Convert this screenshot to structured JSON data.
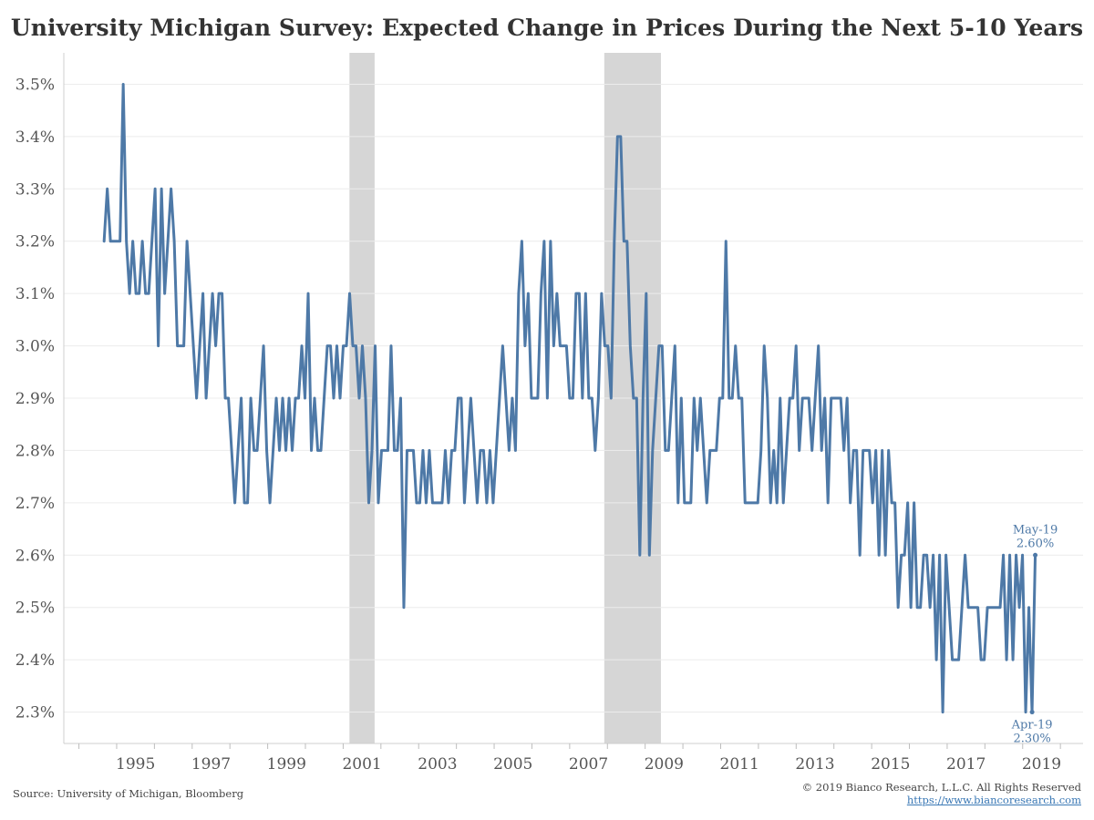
{
  "chart_data": {
    "type": "line",
    "title": "University Michigan Survey: Expected Change in Prices During the Next 5-10 Years",
    "xlabel": "",
    "ylabel": "",
    "x_start": "1994-09",
    "x_end": "2019-05",
    "x_ticks": [
      "1995",
      "1997",
      "1999",
      "2001",
      "2003",
      "2005",
      "2007",
      "2009",
      "2011",
      "2013",
      "2015",
      "2017",
      "2019"
    ],
    "y_ticks": [
      "2.3%",
      "2.4%",
      "2.5%",
      "2.6%",
      "2.7%",
      "2.8%",
      "2.9%",
      "3.0%",
      "3.1%",
      "3.2%",
      "3.3%",
      "3.4%",
      "3.5%"
    ],
    "ylim": [
      2.24,
      3.56
    ],
    "grid": "horizontal",
    "line_color": "#4e79a7",
    "shade_color": "#d6d6d6",
    "recessions": [
      {
        "start": "2001-03",
        "end": "2001-11"
      },
      {
        "start": "2007-12",
        "end": "2009-06"
      }
    ],
    "series": [
      {
        "values": [
          3.2,
          3.3,
          3.2,
          3.2,
          3.2,
          3.2,
          3.5,
          3.2,
          3.1,
          3.2,
          3.1,
          3.1,
          3.2,
          3.1,
          3.1,
          3.2,
          3.3,
          3.0,
          3.3,
          3.1,
          3.2,
          3.3,
          3.2,
          3.0,
          3.0,
          3.0,
          3.2,
          3.1,
          3.0,
          2.9,
          3.0,
          3.1,
          2.9,
          3.0,
          3.1,
          3.0,
          3.1,
          3.1,
          2.9,
          2.9,
          2.8,
          2.7,
          2.8,
          2.9,
          2.7,
          2.7,
          2.9,
          2.8,
          2.8,
          2.9,
          3.0,
          2.8,
          2.7,
          2.8,
          2.9,
          2.8,
          2.9,
          2.8,
          2.9,
          2.8,
          2.9,
          2.9,
          3.0,
          2.9,
          3.1,
          2.8,
          2.9,
          2.8,
          2.8,
          2.9,
          3.0,
          3.0,
          2.9,
          3.0,
          2.9,
          3.0,
          3.0,
          3.1,
          3.0,
          3.0,
          2.9,
          3.0,
          2.9,
          2.7,
          2.8,
          3.0,
          2.7,
          2.8,
          2.8,
          2.8,
          3.0,
          2.8,
          2.8,
          2.9,
          2.5,
          2.8,
          2.8,
          2.8,
          2.7,
          2.7,
          2.8,
          2.7,
          2.8,
          2.7,
          2.7,
          2.7,
          2.7,
          2.8,
          2.7,
          2.8,
          2.8,
          2.9,
          2.9,
          2.7,
          2.8,
          2.9,
          2.8,
          2.7,
          2.8,
          2.8,
          2.7,
          2.8,
          2.7,
          2.8,
          2.9,
          3.0,
          2.9,
          2.8,
          2.9,
          2.8,
          3.1,
          3.2,
          3.0,
          3.1,
          2.9,
          2.9,
          2.9,
          3.1,
          3.2,
          2.9,
          3.2,
          3.0,
          3.1,
          3.0,
          3.0,
          3.0,
          2.9,
          2.9,
          3.1,
          3.1,
          2.9,
          3.1,
          2.9,
          2.9,
          2.8,
          2.9,
          3.1,
          3.0,
          3.0,
          2.9,
          3.2,
          3.4,
          3.4,
          3.2,
          3.2,
          3.0,
          2.9,
          2.9,
          2.6,
          2.9,
          3.1,
          2.6,
          2.8,
          2.9,
          3.0,
          3.0,
          2.8,
          2.8,
          2.9,
          3.0,
          2.7,
          2.9,
          2.7,
          2.7,
          2.7,
          2.9,
          2.8,
          2.9,
          2.8,
          2.7,
          2.8,
          2.8,
          2.8,
          2.9,
          2.9,
          3.2,
          2.9,
          2.9,
          3.0,
          2.9,
          2.9,
          2.7,
          2.7,
          2.7,
          2.7,
          2.7,
          2.8,
          3.0,
          2.9,
          2.7,
          2.8,
          2.7,
          2.9,
          2.7,
          2.8,
          2.9,
          2.9,
          3.0,
          2.8,
          2.9,
          2.9,
          2.9,
          2.8,
          2.9,
          3.0,
          2.8,
          2.9,
          2.7,
          2.9,
          2.9,
          2.9,
          2.9,
          2.8,
          2.9,
          2.7,
          2.8,
          2.8,
          2.6,
          2.8,
          2.8,
          2.8,
          2.7,
          2.8,
          2.6,
          2.8,
          2.6,
          2.8,
          2.7,
          2.7,
          2.5,
          2.6,
          2.6,
          2.7,
          2.5,
          2.7,
          2.5,
          2.5,
          2.6,
          2.6,
          2.5,
          2.6,
          2.4,
          2.6,
          2.3,
          2.6,
          2.5,
          2.4,
          2.4,
          2.4,
          2.5,
          2.6,
          2.5,
          2.5,
          2.5,
          2.5,
          2.4,
          2.4,
          2.5,
          2.5,
          2.5,
          2.5,
          2.5,
          2.6,
          2.4,
          2.6,
          2.4,
          2.6,
          2.5,
          2.6,
          2.3,
          2.5,
          2.3,
          2.6
        ]
      }
    ],
    "annotations": [
      {
        "date": "2019-05",
        "value": 2.6,
        "label_line1": "May-19",
        "label_line2": "2.60%",
        "placement": "above"
      },
      {
        "date": "2019-04",
        "value": 2.3,
        "label_line1": "Apr-19",
        "label_line2": "2.30%",
        "placement": "below"
      }
    ]
  },
  "footer": {
    "source": "Source: University of Michigan, Bloomberg",
    "copyright": "© 2019 Bianco Research, L.L.C. All Rights Reserved",
    "url": "https://www.biancoresearch.com"
  }
}
